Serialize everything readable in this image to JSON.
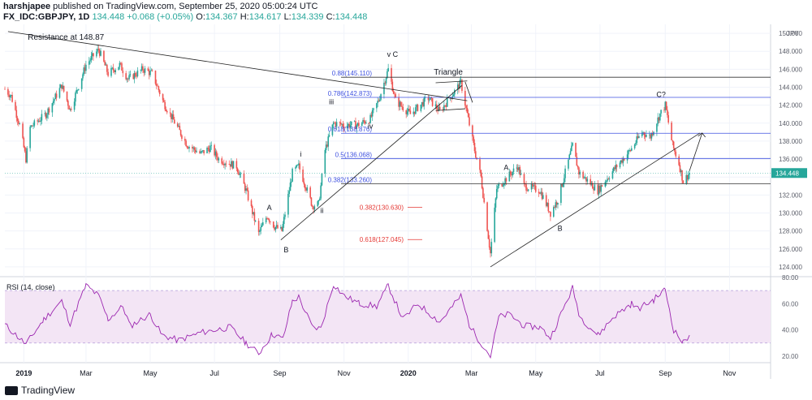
{
  "header": {
    "author": "harshjapee",
    "published_text": "published on TradingView.com, September 25, 2020 05:00:24 UTC",
    "symbol": "FX_IDC:GBPJPY, 1D",
    "last": "134.448",
    "change": "+0.068 (+0.05%)",
    "ohlc": {
      "o_label": "O:",
      "o": "134.367",
      "h_label": "H:",
      "h": "134.617",
      "l_label": "L:",
      "l": "134.339",
      "c_label": "C:",
      "c": "134.448"
    }
  },
  "colors": {
    "up": "#26a69a",
    "down": "#ef5350",
    "fib": "#3f51e0",
    "fib_red": "#e53935",
    "rsi": "#9c27b0",
    "rsi_band": "#f3e5f5",
    "text": "#131722"
  },
  "footer": {
    "brand": "TradingView"
  },
  "chart_data": [
    {
      "type": "candlestick",
      "currency_label": "JPY",
      "y_ticks": [
        150,
        148,
        146,
        144,
        142,
        140,
        138,
        136,
        134,
        132,
        130,
        128,
        126,
        124
      ],
      "y_tick_labels": [
        "150.000",
        "148.000",
        "146.000",
        "144.000",
        "142.000",
        "140.000",
        "138.000",
        "136.000",
        "134.448",
        "132.000",
        "130.000",
        "128.000",
        "126.000",
        "124.000"
      ],
      "ylim": [
        123,
        151
      ],
      "x_labels": [
        "2019",
        "Mar",
        "May",
        "Jul",
        "Sep",
        "Nov",
        "2020",
        "Mar",
        "May",
        "Jul",
        "Sep",
        "Nov"
      ],
      "x_label_dates": [
        "2019-01-01",
        "2019-03-01",
        "2019-05-01",
        "2019-07-01",
        "2019-09-01",
        "2019-11-01",
        "2020-01-01",
        "2020-03-01",
        "2020-05-01",
        "2020-07-01",
        "2020-09-01",
        "2020-11-01"
      ],
      "price_path": [
        {
          "date": "2018-12-14",
          "price": 143.8
        },
        {
          "date": "2018-12-20",
          "price": 143.0
        },
        {
          "date": "2018-12-28",
          "price": 139.8
        },
        {
          "date": "2019-01-03",
          "price": 136.0
        },
        {
          "date": "2019-01-07",
          "price": 139.5
        },
        {
          "date": "2019-01-22",
          "price": 141.0
        },
        {
          "date": "2019-02-06",
          "price": 144.2
        },
        {
          "date": "2019-02-14",
          "price": 141.5
        },
        {
          "date": "2019-03-01",
          "price": 146.5
        },
        {
          "date": "2019-03-13",
          "price": 148.2
        },
        {
          "date": "2019-03-22",
          "price": 145.5
        },
        {
          "date": "2019-04-02",
          "price": 146.5
        },
        {
          "date": "2019-04-10",
          "price": 144.9
        },
        {
          "date": "2019-04-24",
          "price": 146.0
        },
        {
          "date": "2019-05-03",
          "price": 145.5
        },
        {
          "date": "2019-05-14",
          "price": 142.2
        },
        {
          "date": "2019-05-27",
          "price": 139.5
        },
        {
          "date": "2019-06-05",
          "price": 137.6
        },
        {
          "date": "2019-06-18",
          "price": 136.6
        },
        {
          "date": "2019-06-27",
          "price": 137.3
        },
        {
          "date": "2019-07-05",
          "price": 136.0
        },
        {
          "date": "2019-07-22",
          "price": 135.2
        },
        {
          "date": "2019-07-31",
          "price": 132.5
        },
        {
          "date": "2019-08-12",
          "price": 127.7
        },
        {
          "date": "2019-08-20",
          "price": 129.7
        },
        {
          "date": "2019-08-27",
          "price": 128.5
        },
        {
          "date": "2019-09-03",
          "price": 128.0
        },
        {
          "date": "2019-09-13",
          "price": 134.5
        },
        {
          "date": "2019-09-19",
          "price": 135.2
        },
        {
          "date": "2019-10-02",
          "price": 130.8
        },
        {
          "date": "2019-10-08",
          "price": 131.0
        },
        {
          "date": "2019-10-14",
          "price": 137.0
        },
        {
          "date": "2019-10-22",
          "price": 140.0
        },
        {
          "date": "2019-11-01",
          "price": 139.8
        },
        {
          "date": "2019-11-14",
          "price": 139.8
        },
        {
          "date": "2019-11-26",
          "price": 140.5
        },
        {
          "date": "2019-12-04",
          "price": 142.6
        },
        {
          "date": "2019-12-13",
          "price": 146.0
        },
        {
          "date": "2019-12-20",
          "price": 142.5
        },
        {
          "date": "2020-01-03",
          "price": 141.0
        },
        {
          "date": "2020-01-20",
          "price": 142.8
        },
        {
          "date": "2020-01-31",
          "price": 141.3
        },
        {
          "date": "2020-02-20",
          "price": 144.5
        },
        {
          "date": "2020-02-26",
          "price": 141.0
        },
        {
          "date": "2020-03-04",
          "price": 137.0
        },
        {
          "date": "2020-03-10",
          "price": 134.0
        },
        {
          "date": "2020-03-19",
          "price": 125.5
        },
        {
          "date": "2020-03-25",
          "price": 132.7
        },
        {
          "date": "2020-04-01",
          "price": 133.6
        },
        {
          "date": "2020-04-14",
          "price": 135.2
        },
        {
          "date": "2020-04-20",
          "price": 133.0
        },
        {
          "date": "2020-05-05",
          "price": 132.5
        },
        {
          "date": "2020-05-15",
          "price": 130.0
        },
        {
          "date": "2020-05-22",
          "price": 131.5
        },
        {
          "date": "2020-06-05",
          "price": 137.5
        },
        {
          "date": "2020-06-11",
          "price": 134.5
        },
        {
          "date": "2020-06-29",
          "price": 132.5
        },
        {
          "date": "2020-07-14",
          "price": 134.8
        },
        {
          "date": "2020-07-30",
          "price": 137.0
        },
        {
          "date": "2020-08-10",
          "price": 139.0
        },
        {
          "date": "2020-08-18",
          "price": 138.5
        },
        {
          "date": "2020-08-27",
          "price": 141.0
        },
        {
          "date": "2020-09-01",
          "price": 142.0
        },
        {
          "date": "2020-09-08",
          "price": 137.5
        },
        {
          "date": "2020-09-14",
          "price": 135.5
        },
        {
          "date": "2020-09-18",
          "price": 133.5
        },
        {
          "date": "2020-09-24",
          "price": 134.45
        }
      ],
      "horizontal_levels": [
        {
          "label": "0.88(145.110)",
          "value": 145.11,
          "color": "black"
        },
        {
          "label": "0.786(142.873)",
          "value": 142.873,
          "color": "blue"
        },
        {
          "label": "0.618(138.876)",
          "value": 138.876,
          "color": "blue"
        },
        {
          "label": "0.5(136.068)",
          "value": 136.068,
          "color": "blue"
        },
        {
          "label": "0.382(133.260)",
          "value": 133.26,
          "color": "black"
        }
      ],
      "red_levels": [
        {
          "label": "0.382(130.630)",
          "value": 130.63
        },
        {
          "label": "0.618(127.045)",
          "value": 127.045
        }
      ],
      "trendlines": [
        {
          "from": {
            "date": "2018-12-17",
            "price": 150.2
          },
          "to": {
            "date": "2020-02-26",
            "price": 142.5
          }
        },
        {
          "from": {
            "date": "2019-09-02",
            "price": 127.0
          },
          "to": {
            "date": "2020-02-21",
            "price": 144.2
          }
        },
        {
          "from": {
            "date": "2020-03-19",
            "price": 124.0
          },
          "to": {
            "date": "2020-10-04",
            "price": 138.9
          }
        },
        {
          "from": {
            "date": "2020-01-27",
            "price": 144.5
          },
          "to": {
            "date": "2020-02-26",
            "price": 144.7
          }
        },
        {
          "from": {
            "date": "2020-01-27",
            "price": 141.4
          },
          "to": {
            "date": "2020-02-24",
            "price": 141.6
          }
        },
        {
          "from": {
            "date": "2020-02-24",
            "price": 144.6
          },
          "to": {
            "date": "2020-03-02",
            "price": 142.3
          }
        }
      ],
      "projection_arrow": {
        "from": {
          "date": "2020-09-24",
          "price": 134.7
        },
        "to": {
          "date": "2020-10-06",
          "price": 138.9
        }
      },
      "annotations": [
        {
          "text": "Resistance at 148.87",
          "date": "2019-02-10",
          "price": 149.3
        },
        {
          "text": "v C",
          "date": "2019-12-17",
          "price": 147.4
        },
        {
          "text": "Triangle",
          "date": "2020-02-08",
          "price": 145.4
        },
        {
          "text": "iii",
          "date": "2019-10-20",
          "price": 142.1
        },
        {
          "text": "iv",
          "date": "2019-11-26",
          "price": 139.4
        },
        {
          "text": "i",
          "date": "2019-09-21",
          "price": 136.3
        },
        {
          "text": "ii",
          "date": "2019-10-11",
          "price": 130.0
        },
        {
          "text": "A",
          "date": "2019-08-22",
          "price": 130.3
        },
        {
          "text": "B",
          "date": "2019-09-07",
          "price": 125.6
        },
        {
          "text": "A",
          "date": "2020-04-03",
          "price": 134.8
        },
        {
          "text": "B",
          "date": "2020-05-24",
          "price": 128.0
        },
        {
          "text": "C?",
          "date": "2020-08-28",
          "price": 142.9
        }
      ]
    },
    {
      "type": "line",
      "title": "RSI (14, close)",
      "ylim": [
        15,
        80
      ],
      "y_ticks": [
        80,
        60,
        40,
        20
      ],
      "y_tick_labels": [
        "80.00",
        "60.00",
        "40.00",
        "20.00"
      ],
      "band": [
        30,
        70
      ],
      "series": [
        {
          "name": "RSI",
          "points": [
            {
              "date": "2018-12-14",
              "value": 44
            },
            {
              "date": "2019-01-03",
              "value": 29
            },
            {
              "date": "2019-01-20",
              "value": 48
            },
            {
              "date": "2019-02-06",
              "value": 62
            },
            {
              "date": "2019-02-14",
              "value": 45
            },
            {
              "date": "2019-03-01",
              "value": 74
            },
            {
              "date": "2019-03-13",
              "value": 66
            },
            {
              "date": "2019-03-22",
              "value": 48
            },
            {
              "date": "2019-04-05",
              "value": 58
            },
            {
              "date": "2019-04-12",
              "value": 43
            },
            {
              "date": "2019-05-01",
              "value": 52
            },
            {
              "date": "2019-05-12",
              "value": 36
            },
            {
              "date": "2019-05-28",
              "value": 32
            },
            {
              "date": "2019-06-18",
              "value": 38
            },
            {
              "date": "2019-07-02",
              "value": 40
            },
            {
              "date": "2019-07-16",
              "value": 42
            },
            {
              "date": "2019-07-31",
              "value": 30
            },
            {
              "date": "2019-08-12",
              "value": 22
            },
            {
              "date": "2019-08-25",
              "value": 37
            },
            {
              "date": "2019-09-04",
              "value": 33
            },
            {
              "date": "2019-09-13",
              "value": 62
            },
            {
              "date": "2019-09-19",
              "value": 65
            },
            {
              "date": "2019-10-02",
              "value": 42
            },
            {
              "date": "2019-10-10",
              "value": 41
            },
            {
              "date": "2019-10-22",
              "value": 75
            },
            {
              "date": "2019-11-01",
              "value": 66
            },
            {
              "date": "2019-11-16",
              "value": 60
            },
            {
              "date": "2019-12-02",
              "value": 58
            },
            {
              "date": "2019-12-13",
              "value": 74
            },
            {
              "date": "2019-12-27",
              "value": 48
            },
            {
              "date": "2020-01-10",
              "value": 60
            },
            {
              "date": "2020-01-31",
              "value": 46
            },
            {
              "date": "2020-02-20",
              "value": 66
            },
            {
              "date": "2020-02-28",
              "value": 44
            },
            {
              "date": "2020-03-05",
              "value": 36
            },
            {
              "date": "2020-03-19",
              "value": 20
            },
            {
              "date": "2020-03-27",
              "value": 50
            },
            {
              "date": "2020-04-06",
              "value": 52
            },
            {
              "date": "2020-04-20",
              "value": 43
            },
            {
              "date": "2020-05-05",
              "value": 42
            },
            {
              "date": "2020-05-15",
              "value": 34
            },
            {
              "date": "2020-06-05",
              "value": 72
            },
            {
              "date": "2020-06-12",
              "value": 50
            },
            {
              "date": "2020-06-29",
              "value": 36
            },
            {
              "date": "2020-07-14",
              "value": 50
            },
            {
              "date": "2020-07-31",
              "value": 60
            },
            {
              "date": "2020-08-06",
              "value": 56
            },
            {
              "date": "2020-08-21",
              "value": 63
            },
            {
              "date": "2020-09-01",
              "value": 71
            },
            {
              "date": "2020-09-09",
              "value": 40
            },
            {
              "date": "2020-09-18",
              "value": 30
            },
            {
              "date": "2020-09-24",
              "value": 36
            }
          ]
        }
      ]
    }
  ]
}
